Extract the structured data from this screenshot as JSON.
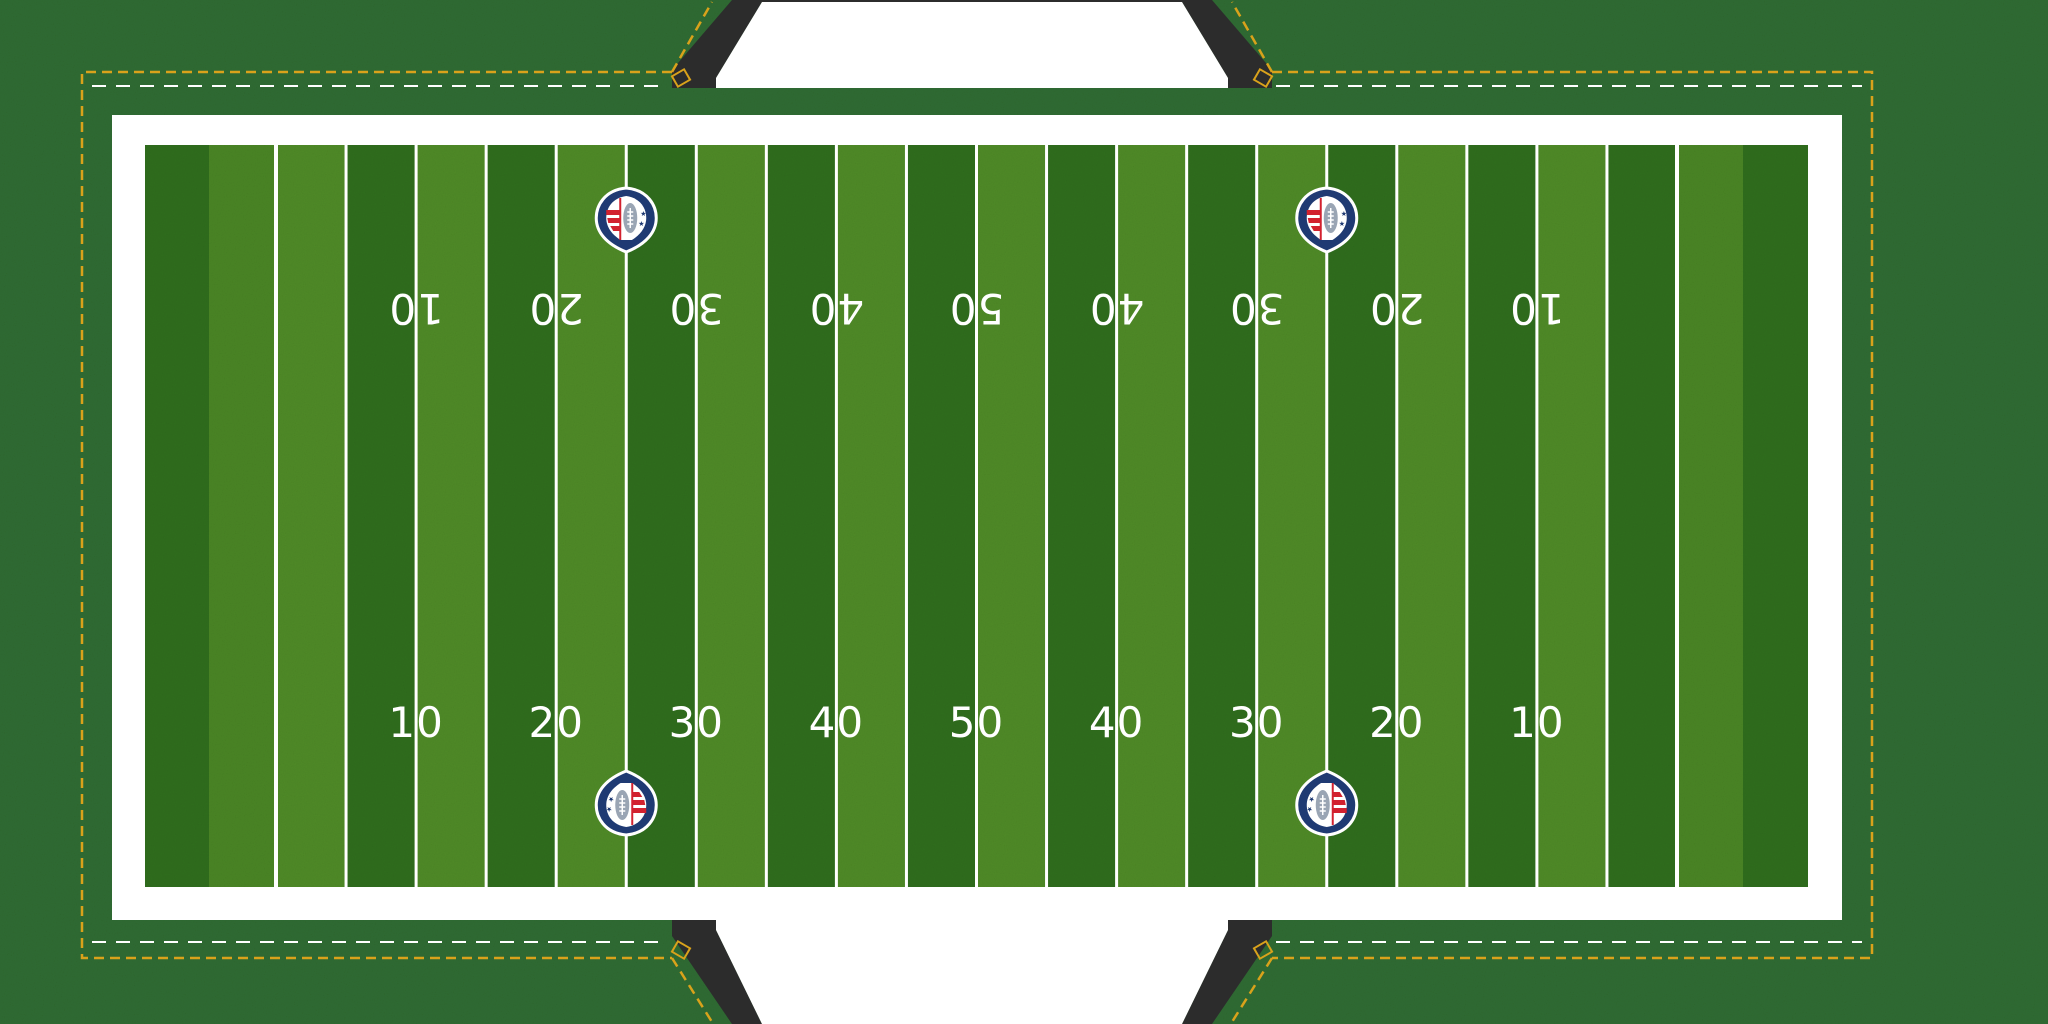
{
  "field": {
    "yard_markers_bottom": [
      "10",
      "20",
      "30",
      "40",
      "50",
      "40",
      "30",
      "20",
      "10"
    ],
    "yard_markers_top": [
      "10",
      "20",
      "30",
      "40",
      "50",
      "40",
      "30",
      "20",
      "10"
    ],
    "logo_icon": "league-shield-football-icon",
    "logo_count": 4
  },
  "colors": {
    "surround_grass": "#2f6b32",
    "turf_dark": "#2f6d1f",
    "turf_light": "#4f8a26",
    "border": "#ffffff",
    "sideline_dash": "#d9a21b",
    "tunnel": "#2c2c2c",
    "logo_navy": "#1f3a73",
    "logo_red": "#d2212f"
  }
}
